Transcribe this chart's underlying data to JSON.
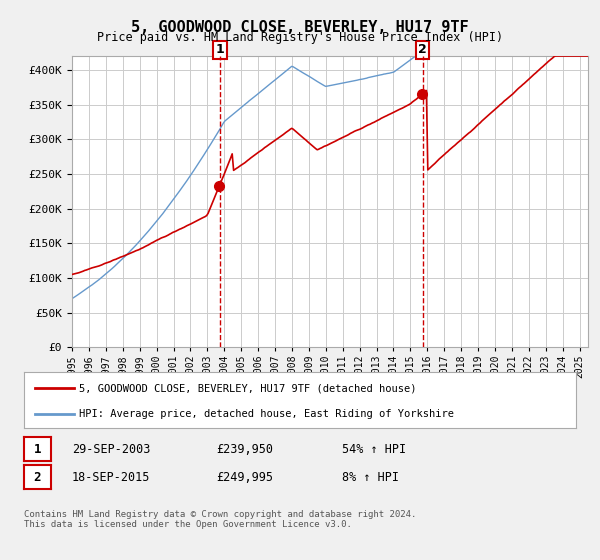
{
  "title": "5, GOODWOOD CLOSE, BEVERLEY, HU17 9TF",
  "subtitle": "Price paid vs. HM Land Registry's House Price Index (HPI)",
  "red_label": "5, GOODWOOD CLOSE, BEVERLEY, HU17 9TF (detached house)",
  "blue_label": "HPI: Average price, detached house, East Riding of Yorkshire",
  "sale1_date": "29-SEP-2003",
  "sale1_price": "£239,950",
  "sale1_hpi": "54% ↑ HPI",
  "sale2_date": "18-SEP-2015",
  "sale2_price": "£249,995",
  "sale2_hpi": "8% ↑ HPI",
  "sale1_year": 2003.75,
  "sale2_year": 2015.72,
  "sale1_value": 239950,
  "sale2_value": 249995,
  "ylim_min": 0,
  "ylim_max": 420000,
  "xlim_min": 1995,
  "xlim_max": 2025.5,
  "footer": "Contains HM Land Registry data © Crown copyright and database right 2024.\nThis data is licensed under the Open Government Licence v3.0.",
  "background_color": "#f0f0f0",
  "plot_bg_color": "#ffffff",
  "red_color": "#cc0000",
  "blue_color": "#6699cc",
  "vline_color": "#cc0000",
  "grid_color": "#cccccc"
}
